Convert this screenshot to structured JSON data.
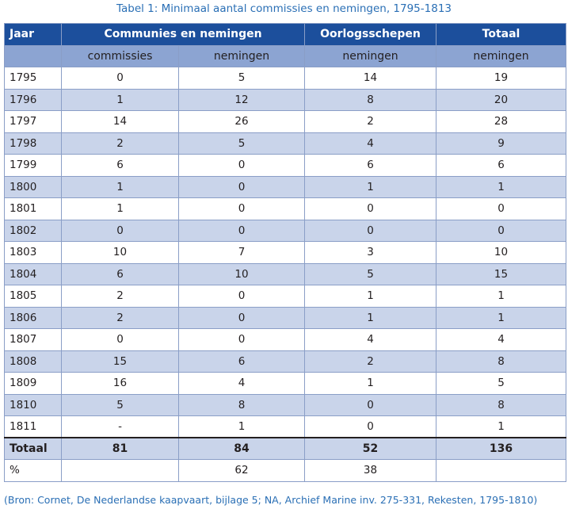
{
  "caption": "Tabel 1: Minimaal aantal commissies en nemingen, 1795-1813",
  "header": {
    "col_year": "Jaar",
    "group_communies": "Communies en nemingen",
    "group_oorlog": "Oorlogsschepen",
    "group_totaal": "Totaal",
    "sub_commissies": "commissies",
    "sub_nemingen_1": "nemingen",
    "sub_nemingen_2": "nemingen",
    "sub_nemingen_3": "nemingen"
  },
  "rows": [
    {
      "year": "1795",
      "commissies": "0",
      "nemingen": "5",
      "oorlog": "14",
      "totaal": "19"
    },
    {
      "year": "1796",
      "commissies": "1",
      "nemingen": "12",
      "oorlog": "8",
      "totaal": "20"
    },
    {
      "year": "1797",
      "commissies": "14",
      "nemingen": "26",
      "oorlog": "2",
      "totaal": "28"
    },
    {
      "year": "1798",
      "commissies": "2",
      "nemingen": "5",
      "oorlog": "4",
      "totaal": "9"
    },
    {
      "year": "1799",
      "commissies": "6",
      "nemingen": "0",
      "oorlog": "6",
      "totaal": "6"
    },
    {
      "year": "1800",
      "commissies": "1",
      "nemingen": "0",
      "oorlog": "1",
      "totaal": "1"
    },
    {
      "year": "1801",
      "commissies": "1",
      "nemingen": "0",
      "oorlog": "0",
      "totaal": "0"
    },
    {
      "year": "1802",
      "commissies": "0",
      "nemingen": "0",
      "oorlog": "0",
      "totaal": "0"
    },
    {
      "year": "1803",
      "commissies": "10",
      "nemingen": "7",
      "oorlog": "3",
      "totaal": "10"
    },
    {
      "year": "1804",
      "commissies": "6",
      "nemingen": "10",
      "oorlog": "5",
      "totaal": "15"
    },
    {
      "year": "1805",
      "commissies": "2",
      "nemingen": "0",
      "oorlog": "1",
      "totaal": "1"
    },
    {
      "year": "1806",
      "commissies": "2",
      "nemingen": "0",
      "oorlog": "1",
      "totaal": "1"
    },
    {
      "year": "1807",
      "commissies": "0",
      "nemingen": "0",
      "oorlog": "4",
      "totaal": "4"
    },
    {
      "year": "1808",
      "commissies": "15",
      "nemingen": "6",
      "oorlog": "2",
      "totaal": "8"
    },
    {
      "year": "1809",
      "commissies": "16",
      "nemingen": "4",
      "oorlog": "1",
      "totaal": "5"
    },
    {
      "year": "1810",
      "commissies": "5",
      "nemingen": "8",
      "oorlog": "0",
      "totaal": "8"
    },
    {
      "year": "1811",
      "commissies": "-",
      "nemingen": "1",
      "oorlog": "0",
      "totaal": "1"
    }
  ],
  "total": {
    "label": "Totaal",
    "commissies": "81",
    "nemingen": "84",
    "oorlog": "52",
    "totaal": "136"
  },
  "percent": {
    "label": "%",
    "commissies": "",
    "nemingen": "62",
    "oorlog": "38",
    "totaal": ""
  },
  "source": "(Bron: Cornet, De Nederlandse kaapvaart, bijlage 5; NA, Archief Marine inv. 275-331, Rekesten, 1795-1810)",
  "colors": {
    "header_dark": "#1c4f9c",
    "header_light": "#8ca4d2",
    "row_stripe": "#c9d4ea",
    "caption_blue": "#2a6fb5"
  }
}
